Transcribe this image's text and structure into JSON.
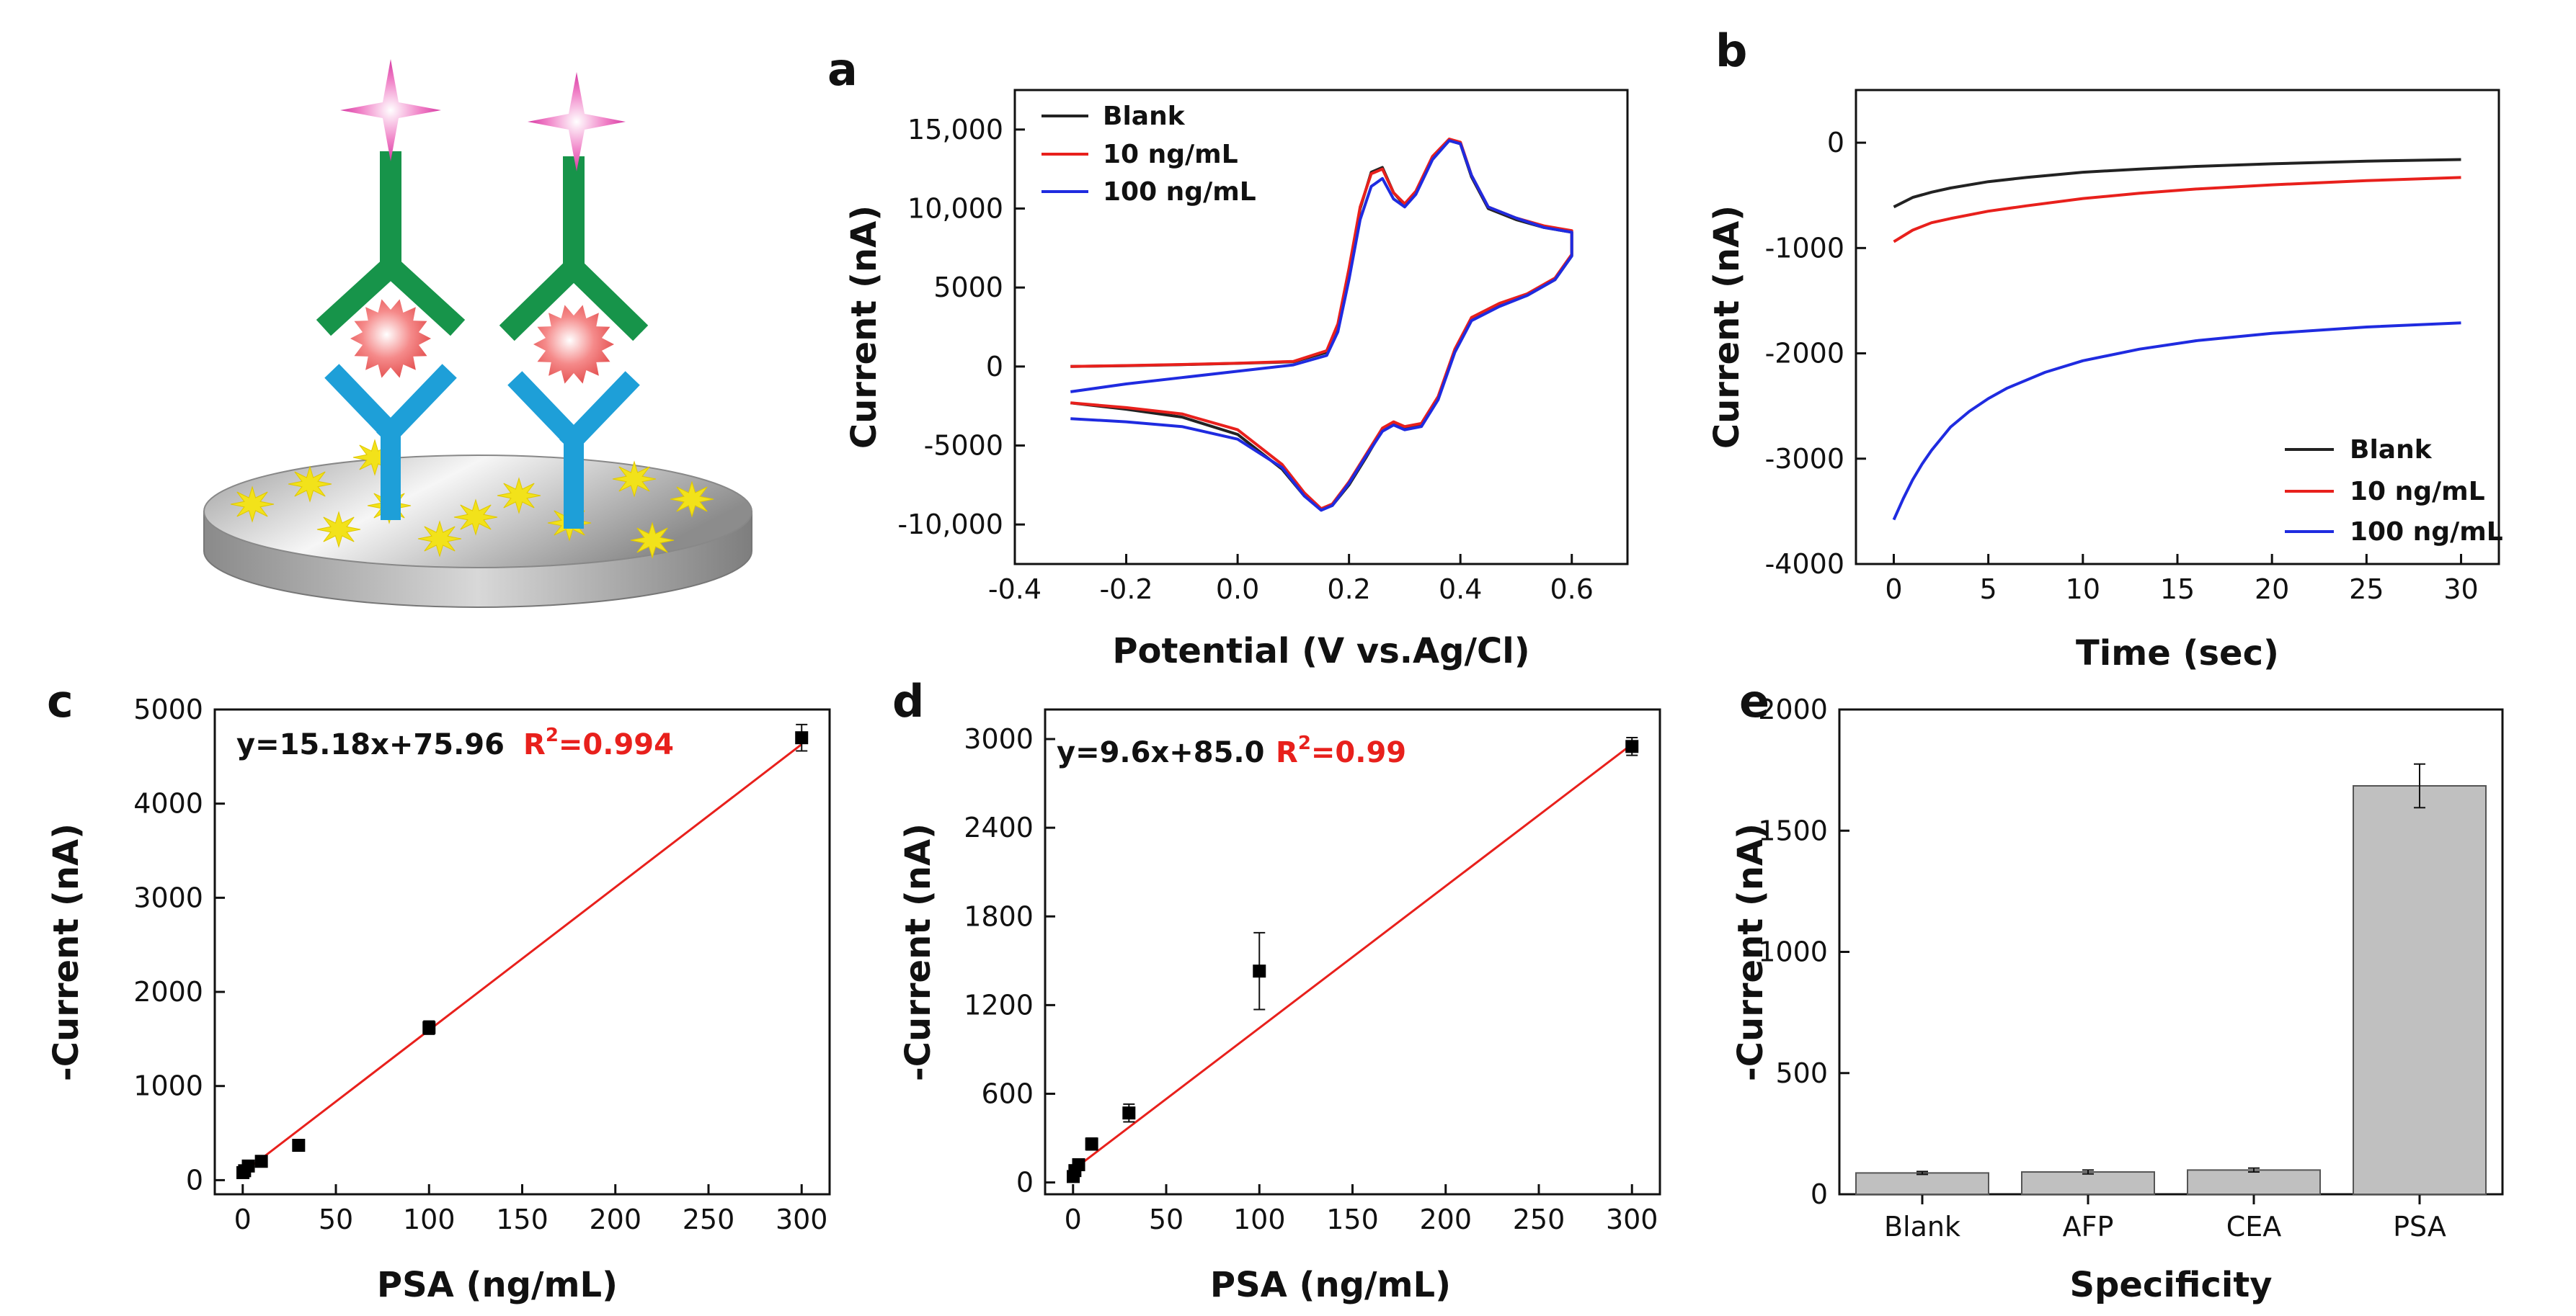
{
  "colors": {
    "black": "#222222",
    "red": "#e8201c",
    "blue": "#1f2be0",
    "fit": "#e8201c",
    "bar": "#c0c0c0"
  },
  "panel_labels": {
    "a": "a",
    "b": "b",
    "c": "c",
    "d": "d",
    "e": "e"
  },
  "schematic": {
    "description_icon": "immunosensor-electrode-icon"
  },
  "chart_data": [
    {
      "id": "a",
      "type": "line",
      "xlabel": "Potential (V vs.Ag/Cl)",
      "ylabel": "Current (nA)",
      "xlim": [
        -0.4,
        0.7
      ],
      "ylim": [
        -12500,
        17500
      ],
      "xticks": [
        -0.4,
        -0.2,
        0.0,
        0.2,
        0.4,
        0.6
      ],
      "xtick_labels": [
        "-0.4",
        "-0.2",
        "0.0",
        "0.2",
        "0.4",
        "0.6"
      ],
      "yticks": [
        -10000,
        -5000,
        0,
        5000,
        10000,
        15000
      ],
      "ytick_labels": [
        "-10,000",
        "-5000",
        "0",
        "5000",
        "10,000",
        "15,000"
      ],
      "legend": "top-left",
      "series": [
        {
          "name": "Blank",
          "color": "#222222",
          "x": [
            -0.3,
            -0.2,
            -0.1,
            0.0,
            0.1,
            0.16,
            0.18,
            0.2,
            0.22,
            0.24,
            0.26,
            0.28,
            0.3,
            0.32,
            0.35,
            0.38,
            0.4,
            0.42,
            0.45,
            0.5,
            0.55,
            0.6,
            0.6,
            0.57,
            0.52,
            0.47,
            0.42,
            0.39,
            0.36,
            0.33,
            0.3,
            0.28,
            0.26,
            0.23,
            0.2,
            0.17,
            0.15,
            0.12,
            0.08,
            0.0,
            -0.1,
            -0.2,
            -0.3
          ],
          "y": [
            0,
            50,
            120,
            200,
            300,
            900,
            2500,
            6000,
            10000,
            12300,
            12600,
            11000,
            10200,
            11000,
            13200,
            14300,
            14100,
            12000,
            10000,
            9300,
            8800,
            8500,
            7000,
            5500,
            4500,
            3900,
            3000,
            1000,
            -2000,
            -3700,
            -3900,
            -3600,
            -4000,
            -5800,
            -7500,
            -8800,
            -9000,
            -8200,
            -6500,
            -4300,
            -3200,
            -2700,
            -2300
          ]
        },
        {
          "name": "10 ng/mL",
          "color": "#e8201c",
          "x": [
            -0.3,
            -0.2,
            -0.1,
            0.0,
            0.1,
            0.16,
            0.18,
            0.2,
            0.22,
            0.24,
            0.26,
            0.28,
            0.3,
            0.32,
            0.35,
            0.38,
            0.4,
            0.42,
            0.45,
            0.5,
            0.55,
            0.6,
            0.6,
            0.57,
            0.52,
            0.47,
            0.42,
            0.39,
            0.36,
            0.33,
            0.3,
            0.28,
            0.26,
            0.23,
            0.2,
            0.17,
            0.15,
            0.12,
            0.08,
            0.0,
            -0.1,
            -0.2,
            -0.3
          ],
          "y": [
            0,
            60,
            130,
            210,
            320,
            1000,
            2700,
            6200,
            10100,
            12200,
            12500,
            11000,
            10300,
            11100,
            13300,
            14400,
            14200,
            12100,
            10100,
            9400,
            8900,
            8600,
            7100,
            5600,
            4600,
            4000,
            3100,
            1100,
            -1900,
            -3600,
            -3800,
            -3500,
            -3900,
            -5600,
            -7300,
            -8700,
            -9000,
            -8000,
            -6200,
            -4000,
            -3000,
            -2600,
            -2300
          ]
        },
        {
          "name": "100 ng/mL",
          "color": "#1f2be0",
          "x": [
            -0.3,
            -0.2,
            -0.1,
            0.0,
            0.1,
            0.16,
            0.18,
            0.2,
            0.22,
            0.24,
            0.26,
            0.28,
            0.3,
            0.32,
            0.35,
            0.38,
            0.4,
            0.42,
            0.45,
            0.5,
            0.55,
            0.6,
            0.6,
            0.57,
            0.52,
            0.47,
            0.42,
            0.39,
            0.36,
            0.33,
            0.3,
            0.28,
            0.26,
            0.23,
            0.2,
            0.17,
            0.15,
            0.12,
            0.08,
            0.0,
            -0.1,
            -0.2,
            -0.3
          ],
          "y": [
            -1600,
            -1100,
            -700,
            -300,
            100,
            700,
            2200,
            5500,
            9300,
            11400,
            11900,
            10600,
            10100,
            10900,
            13100,
            14300,
            14100,
            12100,
            10100,
            9400,
            8800,
            8500,
            7000,
            5500,
            4500,
            3800,
            2900,
            900,
            -2100,
            -3800,
            -4000,
            -3700,
            -4100,
            -5700,
            -7400,
            -8800,
            -9100,
            -8200,
            -6400,
            -4600,
            -3800,
            -3500,
            -3300
          ]
        }
      ]
    },
    {
      "id": "b",
      "type": "line",
      "xlabel": "Time (sec)",
      "ylabel": "Current (nA)",
      "xlim": [
        -2,
        32
      ],
      "ylim": [
        -4000,
        500
      ],
      "xticks": [
        0,
        5,
        10,
        15,
        20,
        25,
        30
      ],
      "xtick_labels": [
        "0",
        "5",
        "10",
        "15",
        "20",
        "25",
        "30"
      ],
      "yticks": [
        -4000,
        -3000,
        -2000,
        -1000,
        0
      ],
      "ytick_labels": [
        "-4000",
        "-3000",
        "-2000",
        "-1000",
        "0"
      ],
      "legend": "bottom-right",
      "series": [
        {
          "name": "Blank",
          "color": "#222222",
          "x": [
            0,
            1,
            2,
            3,
            5,
            7,
            10,
            13,
            16,
            20,
            25,
            30
          ],
          "y": [
            -610,
            -520,
            -470,
            -430,
            -370,
            -330,
            -280,
            -250,
            -225,
            -200,
            -175,
            -160
          ]
        },
        {
          "name": "10 ng/mL",
          "color": "#e8201c",
          "x": [
            0,
            1,
            2,
            3,
            5,
            7,
            10,
            13,
            16,
            20,
            25,
            30
          ],
          "y": [
            -940,
            -830,
            -760,
            -720,
            -650,
            -600,
            -530,
            -480,
            -440,
            -400,
            -360,
            -330
          ]
        },
        {
          "name": "100 ng/mL",
          "color": "#1f2be0",
          "x": [
            0,
            0.5,
            1,
            1.5,
            2,
            3,
            4,
            5,
            6,
            8,
            10,
            13,
            16,
            20,
            25,
            30
          ],
          "y": [
            -3580,
            -3380,
            -3200,
            -3050,
            -2920,
            -2700,
            -2550,
            -2430,
            -2330,
            -2180,
            -2070,
            -1960,
            -1880,
            -1810,
            -1750,
            -1710
          ]
        }
      ]
    },
    {
      "id": "c",
      "type": "scatter",
      "xlabel": "PSA (ng/mL)",
      "ylabel": "-Current (nA)",
      "xlim": [
        -15,
        315
      ],
      "ylim": [
        -150,
        5000
      ],
      "xticks": [
        0,
        50,
        100,
        150,
        200,
        250,
        300
      ],
      "xtick_labels": [
        "0",
        "50",
        "100",
        "150",
        "200",
        "250",
        "300"
      ],
      "yticks": [
        0,
        1000,
        2000,
        3000,
        4000,
        5000
      ],
      "ytick_labels": [
        "0",
        "1000",
        "2000",
        "3000",
        "4000",
        "5000"
      ],
      "x": [
        0.1,
        1,
        3,
        10,
        30,
        100,
        300
      ],
      "y": [
        80,
        100,
        150,
        200,
        370,
        1620,
        4700
      ],
      "err": [
        20,
        20,
        25,
        30,
        40,
        70,
        140
      ],
      "fit": {
        "slope": 15.18,
        "intercept": 75.96,
        "x0": 0,
        "x1": 300
      },
      "equation": "y=15.18x+75.96",
      "r2_prefix": "R",
      "r2_sup": "2",
      "r2_value": "=0.994"
    },
    {
      "id": "d",
      "type": "scatter",
      "xlabel": "PSA (ng/mL)",
      "ylabel": "-Current (nA)",
      "xlim": [
        -15,
        315
      ],
      "ylim": [
        -80,
        3200
      ],
      "xticks": [
        0,
        50,
        100,
        150,
        200,
        250,
        300
      ],
      "xtick_labels": [
        "0",
        "50",
        "100",
        "150",
        "200",
        "250",
        "300"
      ],
      "yticks": [
        0,
        600,
        1200,
        1800,
        2400,
        3000
      ],
      "ytick_labels": [
        "0",
        "600",
        "1200",
        "1800",
        "2400",
        "3000"
      ],
      "x": [
        0.1,
        1,
        3,
        10,
        30,
        100,
        300
      ],
      "y": [
        40,
        80,
        120,
        260,
        470,
        1430,
        2950
      ],
      "err": [
        20,
        25,
        30,
        40,
        60,
        260,
        60
      ],
      "fit": {
        "slope": 9.6,
        "intercept": 85.0,
        "x0": 0,
        "x1": 300
      },
      "equation": "y=9.6x+85.0",
      "r2_prefix": "R",
      "r2_sup": "2",
      "r2_value": "=0.99"
    },
    {
      "id": "e",
      "type": "bar",
      "xlabel": "Specificity",
      "ylabel": "-Current (nA)",
      "categories": [
        "Blank",
        "AFP",
        "CEA",
        "PSA"
      ],
      "values": [
        88,
        92,
        100,
        1685
      ],
      "err": [
        6,
        8,
        8,
        90
      ],
      "ylim": [
        0,
        2000
      ],
      "yticks": [
        0,
        500,
        1000,
        1500,
        2000
      ],
      "ytick_labels": [
        "0",
        "500",
        "1000",
        "1500",
        "2000"
      ]
    }
  ]
}
